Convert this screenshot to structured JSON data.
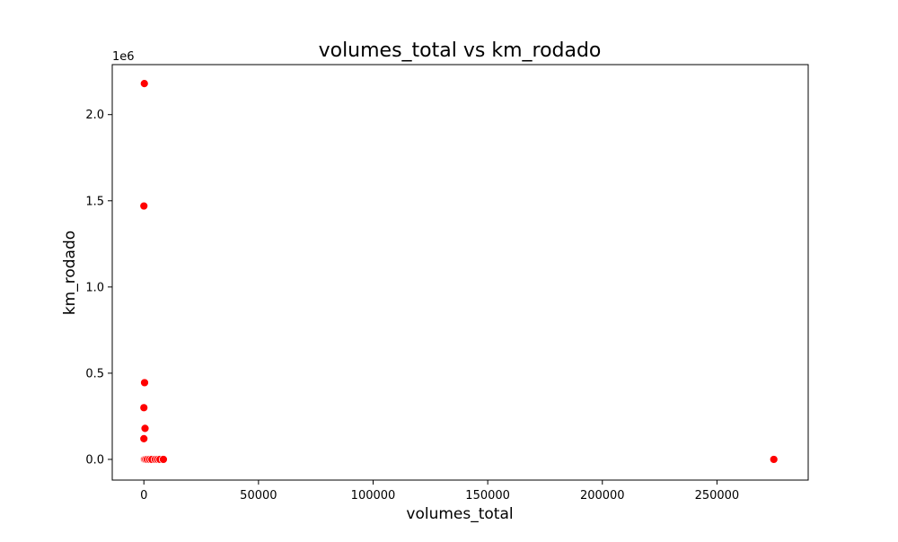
{
  "chart_data": {
    "type": "scatter",
    "title": "volumes_total vs km_rodado",
    "xlabel": "volumes_total",
    "ylabel": "km_rodado",
    "y_offset_label": "1e6",
    "xlim": [
      -13800,
      289800
    ],
    "ylim": [
      -120000,
      2290000
    ],
    "x_ticks": [
      0,
      50000,
      100000,
      150000,
      200000,
      250000
    ],
    "x_tick_labels": [
      "0",
      "50000",
      "100000",
      "150000",
      "200000",
      "250000"
    ],
    "y_ticks": [
      0,
      500000,
      1000000,
      1500000,
      2000000
    ],
    "y_tick_labels": [
      "0.0",
      "0.5",
      "1.0",
      "1.5",
      "2.0"
    ],
    "grid": false,
    "legend": "none",
    "marker_color": "#ff0000",
    "marker_edge_color": "#ffffff",
    "points": [
      {
        "x": 200,
        "y": 2180000
      },
      {
        "x": 0,
        "y": 1470000
      },
      {
        "x": 300,
        "y": 445000
      },
      {
        "x": 0,
        "y": 300000
      },
      {
        "x": 500,
        "y": 180000
      },
      {
        "x": 0,
        "y": 120000
      },
      {
        "x": 0,
        "y": 0
      },
      {
        "x": 300,
        "y": 0
      },
      {
        "x": 800,
        "y": 0
      },
      {
        "x": 1500,
        "y": 0
      },
      {
        "x": 2500,
        "y": 0
      },
      {
        "x": 3500,
        "y": 0
      },
      {
        "x": 5000,
        "y": 0
      },
      {
        "x": 6000,
        "y": 0
      },
      {
        "x": 7000,
        "y": 0
      },
      {
        "x": 8500,
        "y": 0
      },
      {
        "x": 274800,
        "y": 0
      }
    ]
  }
}
